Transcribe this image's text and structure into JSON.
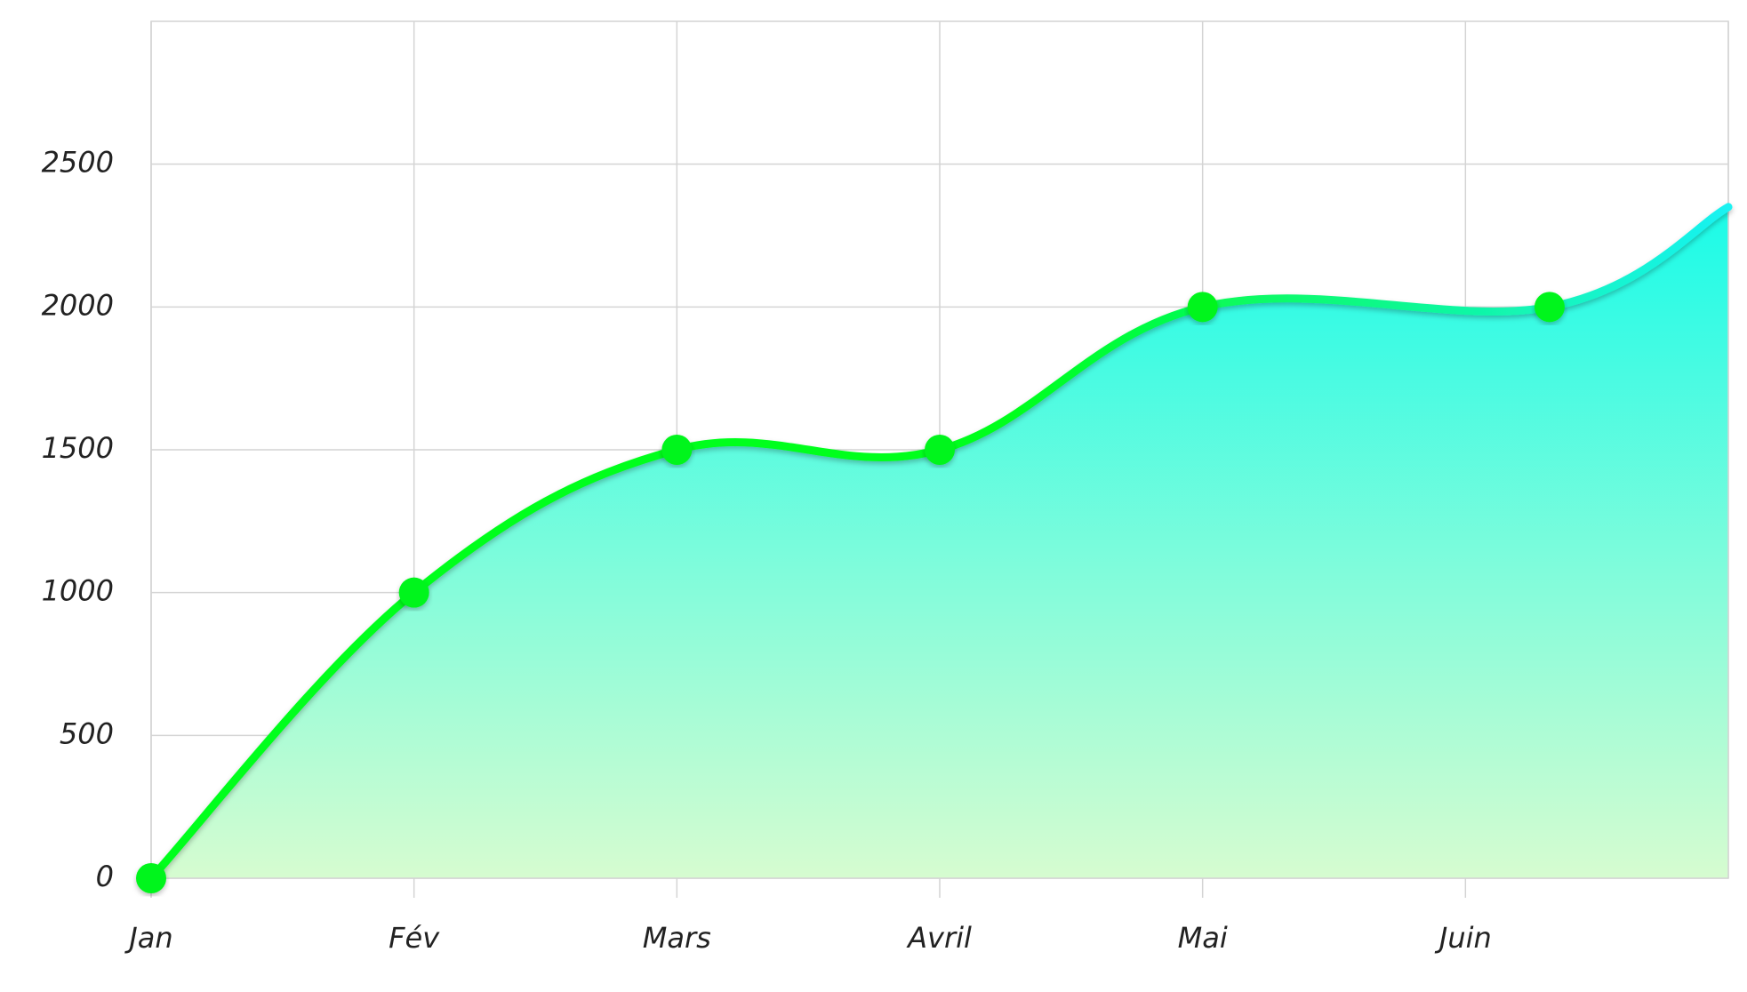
{
  "chart_data": {
    "type": "area",
    "categories": [
      "Jan",
      "Fév",
      "Mars",
      "Avril",
      "Mai",
      "Juin"
    ],
    "points": [
      {
        "x": 0,
        "y": 0
      },
      {
        "x": 1,
        "y": 1000
      },
      {
        "x": 2,
        "y": 1500
      },
      {
        "x": 3,
        "y": 1500
      },
      {
        "x": 4,
        "y": 2000
      },
      {
        "x": 5.32,
        "y": 2000
      }
    ],
    "curve_end": {
      "x": 6,
      "y": 2350
    },
    "y_ticks": [
      0,
      500,
      1000,
      1500,
      2000,
      2500
    ],
    "ylim": [
      0,
      3000
    ],
    "xlim": [
      0,
      6
    ],
    "grid": true,
    "legend": "none",
    "colors": {
      "line_start": "#00ff1e",
      "line_end": "#1af2f2",
      "fill_top": "#1afbe8",
      "fill_bottom": "#d6fcd0",
      "marker": "#00f51a"
    }
  }
}
